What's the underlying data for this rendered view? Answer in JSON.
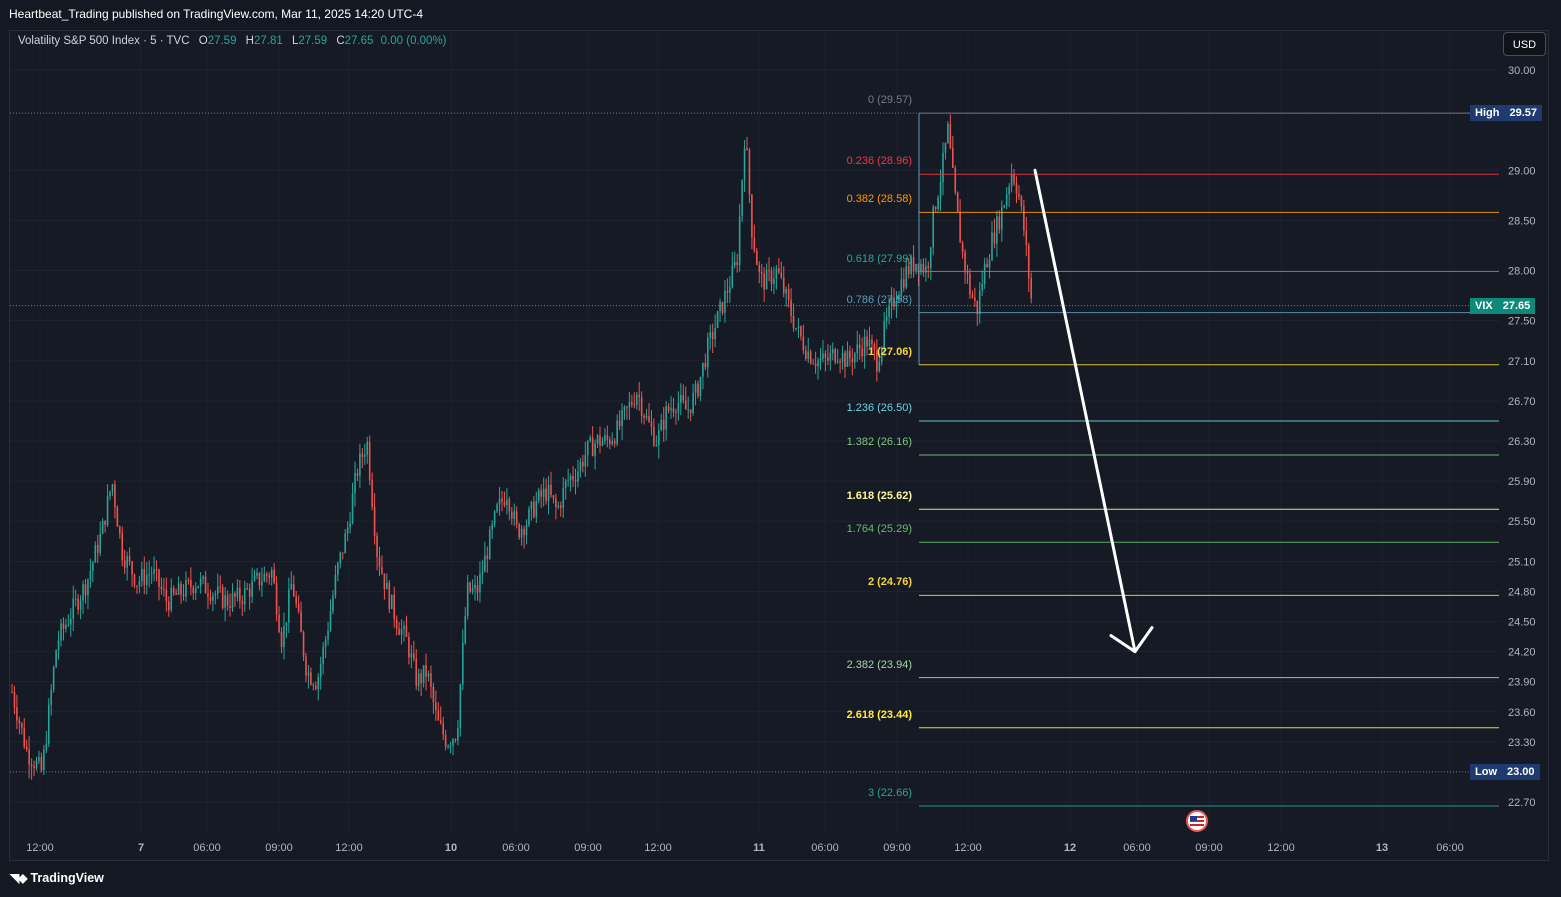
{
  "header": {
    "publisher": "Heartbeat_Trading published on TradingView.com, Mar 11, 2025 14:20 UTC-4"
  },
  "legend": {
    "symbol": "Volatility S&P 500 Index · 5 · TVC",
    "open_label": "O",
    "open": "27.59",
    "high_label": "H",
    "high": "27.81",
    "low_label": "L",
    "low": "27.59",
    "close_label": "C",
    "close": "27.65",
    "change": "0.00 (0.00%)"
  },
  "currency_button": "USD",
  "footer": {
    "brand": "TradingView"
  },
  "chart_data": {
    "type": "candlestick",
    "y_axis": {
      "range": [
        22.55,
        30.25
      ],
      "ticks": [
        "30.00",
        "29.00",
        "28.50",
        "28.00",
        "27.50",
        "27.10",
        "26.70",
        "26.30",
        "25.90",
        "25.50",
        "25.10",
        "24.80",
        "24.50",
        "24.20",
        "23.90",
        "23.60",
        "23.30",
        "22.70"
      ],
      "tick_values": [
        30.0,
        29.0,
        28.5,
        28.0,
        27.5,
        27.1,
        26.7,
        26.3,
        25.9,
        25.5,
        25.1,
        24.8,
        24.5,
        24.2,
        23.9,
        23.6,
        23.3,
        22.7
      ]
    },
    "x_axis": {
      "ticks": [
        "12:00",
        "7",
        "06:00",
        "09:00",
        "12:00",
        "10",
        "06:00",
        "09:00",
        "12:00",
        "11",
        "06:00",
        "09:00",
        "12:00",
        "12",
        "06:00",
        "09:00",
        "12:00",
        "13",
        "06:00"
      ],
      "bold_ticks": [
        "7",
        "10",
        "11",
        "12",
        "13"
      ]
    },
    "price_badges": [
      {
        "name": "High",
        "value": "29.57",
        "price": 29.57,
        "color": "#1e3a6e"
      },
      {
        "name": "VIX",
        "value": "27.65",
        "price": 27.65,
        "color": "#0d8a7a"
      },
      {
        "name": "Low",
        "value": "23.00",
        "price": 23.0,
        "color": "#1e3a6e"
      }
    ],
    "fib_levels": [
      {
        "ratio": "0",
        "label": "0 (29.57)",
        "price": 29.57,
        "color": "#787b86",
        "bold": false
      },
      {
        "ratio": "0.236",
        "label": "0.236 (28.96)",
        "price": 28.96,
        "color": "#f23645",
        "bold": false
      },
      {
        "ratio": "0.382",
        "label": "0.382 (28.58)",
        "price": 28.58,
        "color": "#ff9800",
        "bold": false
      },
      {
        "ratio": "0.618",
        "label": "0.618 (27.99)",
        "price": 27.99,
        "color": "#26a69a",
        "bold": false
      },
      {
        "ratio": "0.786",
        "label": "0.786 (27.58)",
        "price": 27.58,
        "color": "#5d9cb8",
        "bold": false
      },
      {
        "ratio": "1",
        "label": "1 (27.06)",
        "price": 27.06,
        "color": "#f5d43d",
        "bold": true
      },
      {
        "ratio": "1.236",
        "label": "1.236 (26.50)",
        "price": 26.5,
        "color": "#6ed3e8",
        "bold": false
      },
      {
        "ratio": "1.382",
        "label": "1.382 (26.16)",
        "price": 26.16,
        "color": "#7ec77e",
        "bold": false
      },
      {
        "ratio": "1.618",
        "label": "1.618 (25.62)",
        "price": 25.62,
        "color": "#fff59d",
        "bold": true
      },
      {
        "ratio": "1.764",
        "label": "1.764 (25.29)",
        "price": 25.29,
        "color": "#66bb6a",
        "bold": false
      },
      {
        "ratio": "2",
        "label": "2 (24.76)",
        "price": 24.76,
        "color": "#f5d43d",
        "bold": true
      },
      {
        "ratio": "2.382",
        "label": "2.382 (23.94)",
        "price": 23.94,
        "color": "#a5d6a7",
        "bold": false
      },
      {
        "ratio": "2.618",
        "label": "2.618 (23.44)",
        "price": 23.44,
        "color": "#ffeb3b",
        "bold": true
      },
      {
        "ratio": "3",
        "label": "3 (22.66)",
        "price": 22.66,
        "color": "#26a69a",
        "bold": false
      }
    ],
    "price_path": [
      [
        0,
        23.8
      ],
      [
        15,
        23.2
      ],
      [
        30,
        23.0
      ],
      [
        45,
        24.3
      ],
      [
        60,
        24.6
      ],
      [
        75,
        24.9
      ],
      [
        90,
        25.4
      ],
      [
        100,
        25.9
      ],
      [
        110,
        25.2
      ],
      [
        125,
        24.9
      ],
      [
        140,
        25.0
      ],
      [
        155,
        24.7
      ],
      [
        170,
        24.8
      ],
      [
        185,
        24.9
      ],
      [
        200,
        24.8
      ],
      [
        215,
        24.7
      ],
      [
        230,
        24.75
      ],
      [
        245,
        24.9
      ],
      [
        260,
        25.0
      ],
      [
        270,
        24.3
      ],
      [
        280,
        24.9
      ],
      [
        295,
        24.0
      ],
      [
        305,
        23.9
      ],
      [
        315,
        24.4
      ],
      [
        325,
        25.0
      ],
      [
        335,
        25.4
      ],
      [
        345,
        26.0
      ],
      [
        355,
        26.3
      ],
      [
        365,
        25.2
      ],
      [
        375,
        24.8
      ],
      [
        385,
        24.5
      ],
      [
        395,
        24.3
      ],
      [
        405,
        23.9
      ],
      [
        415,
        24.0
      ],
      [
        425,
        23.5
      ],
      [
        435,
        23.3
      ],
      [
        445,
        23.4
      ],
      [
        455,
        24.8
      ],
      [
        465,
        24.8
      ],
      [
        475,
        25.2
      ],
      [
        485,
        25.6
      ],
      [
        495,
        25.8
      ],
      [
        505,
        25.4
      ],
      [
        515,
        25.5
      ],
      [
        525,
        25.7
      ],
      [
        535,
        25.8
      ],
      [
        545,
        25.6
      ],
      [
        555,
        25.9
      ],
      [
        565,
        26.0
      ],
      [
        575,
        26.2
      ],
      [
        585,
        26.3
      ],
      [
        595,
        26.3
      ],
      [
        605,
        26.4
      ],
      [
        615,
        26.6
      ],
      [
        625,
        26.8
      ],
      [
        635,
        26.5
      ],
      [
        645,
        26.3
      ],
      [
        655,
        26.6
      ],
      [
        665,
        26.7
      ],
      [
        675,
        26.6
      ],
      [
        685,
        26.8
      ],
      [
        695,
        27.2
      ],
      [
        705,
        27.5
      ],
      [
        715,
        27.8
      ],
      [
        725,
        28.1
      ],
      [
        733,
        29.4
      ],
      [
        740,
        28.4
      ],
      [
        748,
        27.9
      ],
      [
        755,
        27.9
      ],
      [
        765,
        28.0
      ],
      [
        775,
        27.7
      ],
      [
        785,
        27.4
      ],
      [
        795,
        27.2
      ],
      [
        805,
        27.1
      ],
      [
        815,
        27.1
      ],
      [
        825,
        27.2
      ],
      [
        835,
        27.1
      ],
      [
        845,
        27.2
      ],
      [
        855,
        27.3
      ],
      [
        865,
        27.1
      ],
      [
        875,
        27.5
      ],
      [
        885,
        27.8
      ],
      [
        895,
        28.0
      ],
      [
        905,
        28.1
      ],
      [
        915,
        28.0
      ],
      [
        922,
        28.6
      ],
      [
        930,
        29.0
      ],
      [
        936,
        29.4
      ],
      [
        942,
        28.8
      ],
      [
        950,
        28.2
      ],
      [
        958,
        27.8
      ],
      [
        965,
        27.6
      ],
      [
        972,
        28.0
      ],
      [
        980,
        28.3
      ],
      [
        990,
        28.6
      ],
      [
        1000,
        29.0
      ],
      [
        1006,
        28.8
      ],
      [
        1012,
        28.4
      ],
      [
        1020,
        27.65
      ]
    ],
    "projection_arrow": {
      "from": [
        1035,
        29.0
      ],
      "to": [
        1135,
        24.2
      ]
    }
  }
}
